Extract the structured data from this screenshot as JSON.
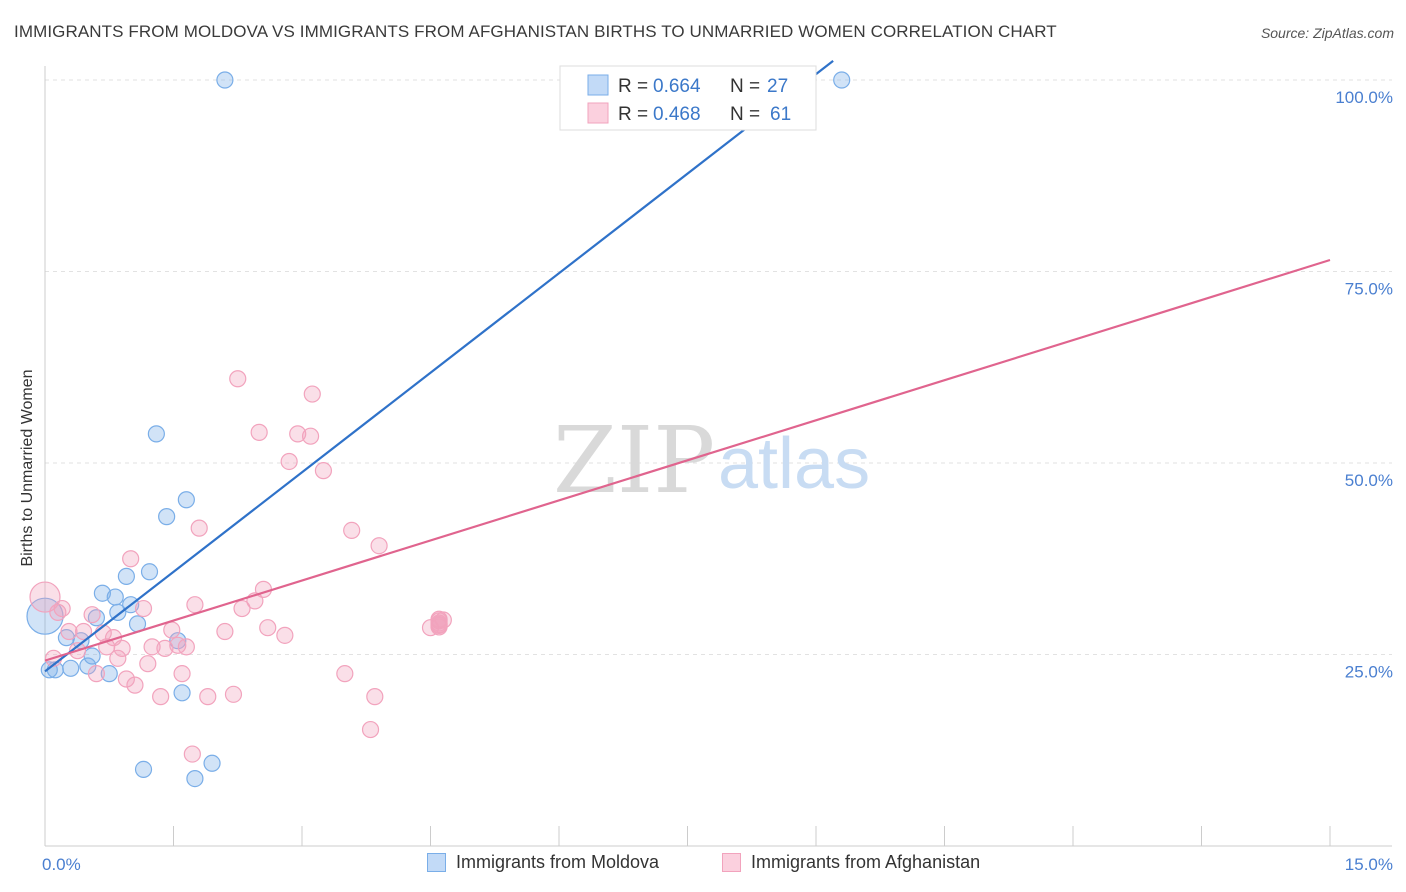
{
  "title": "IMMIGRANTS FROM MOLDOVA VS IMMIGRANTS FROM AFGHANISTAN BIRTHS TO UNMARRIED WOMEN CORRELATION CHART",
  "source": "Source: ZipAtlas.com",
  "watermark": {
    "zip": "ZIP",
    "atlas": "atlas"
  },
  "legend_stats": [
    {
      "r_label": "R =",
      "r_value": "0.664",
      "n_label": "N =",
      "n_value": "27"
    },
    {
      "r_label": "R =",
      "r_value": "0.468",
      "n_label": "N =",
      "n_value": "61"
    }
  ],
  "chart_data": {
    "type": "scatter",
    "title": "IMMIGRANTS FROM MOLDOVA VS IMMIGRANTS FROM AFGHANISTAN BIRTHS TO UNMARRIED WOMEN CORRELATION CHART",
    "xlabel": "",
    "ylabel": "Births to Unmarried Women",
    "xlim": [
      0,
      15
    ],
    "ylim": [
      0,
      100
    ],
    "x_tick_labels": [
      "0.0%",
      "15.0%"
    ],
    "y_ticks": [
      25,
      50,
      75,
      100
    ],
    "y_tick_labels": [
      "25.0%",
      "50.0%",
      "75.0%",
      "100.0%"
    ],
    "grid": true,
    "legend_position": "top-center",
    "series": [
      {
        "name": "Immigrants from Moldova",
        "color": "#7aaee8",
        "line_color": "#2f72c9",
        "r": 0.664,
        "n": 27,
        "trend": [
          [
            0.0,
            22.8
          ],
          [
            9.2,
            102.5
          ]
        ],
        "points": [
          {
            "x": 0.0,
            "y": 30.0,
            "s": 18
          },
          {
            "x": 0.05,
            "y": 23.0
          },
          {
            "x": 0.12,
            "y": 23.0
          },
          {
            "x": 0.25,
            "y": 27.2
          },
          {
            "x": 0.3,
            "y": 23.2
          },
          {
            "x": 0.42,
            "y": 26.8
          },
          {
            "x": 0.5,
            "y": 23.5
          },
          {
            "x": 0.55,
            "y": 24.8
          },
          {
            "x": 0.6,
            "y": 29.8
          },
          {
            "x": 0.67,
            "y": 33.0
          },
          {
            "x": 0.75,
            "y": 22.5
          },
          {
            "x": 0.82,
            "y": 32.5
          },
          {
            "x": 0.85,
            "y": 30.5
          },
          {
            "x": 0.95,
            "y": 35.2
          },
          {
            "x": 1.0,
            "y": 31.5
          },
          {
            "x": 1.08,
            "y": 29.0
          },
          {
            "x": 1.15,
            "y": 10.0
          },
          {
            "x": 1.22,
            "y": 35.8
          },
          {
            "x": 1.3,
            "y": 53.8
          },
          {
            "x": 1.42,
            "y": 43.0
          },
          {
            "x": 1.55,
            "y": 26.8
          },
          {
            "x": 1.6,
            "y": 20.0
          },
          {
            "x": 1.65,
            "y": 45.2
          },
          {
            "x": 1.75,
            "y": 8.8
          },
          {
            "x": 1.95,
            "y": 10.8
          },
          {
            "x": 2.1,
            "y": 100.0
          },
          {
            "x": 9.3,
            "y": 100.0
          }
        ]
      },
      {
        "name": "Immigrants from Afghanistan",
        "color": "#f2a3bd",
        "line_color": "#e0648e",
        "r": 0.468,
        "n": 61,
        "trend": [
          [
            0.0,
            24.2
          ],
          [
            15.0,
            76.5
          ]
        ],
        "points": [
          {
            "x": 0.0,
            "y": 32.5,
            "s": 15
          },
          {
            "x": 0.1,
            "y": 24.5
          },
          {
            "x": 0.15,
            "y": 30.5
          },
          {
            "x": 0.2,
            "y": 31.0
          },
          {
            "x": 0.28,
            "y": 28.0
          },
          {
            "x": 0.38,
            "y": 25.5
          },
          {
            "x": 0.45,
            "y": 28.0
          },
          {
            "x": 0.55,
            "y": 30.2
          },
          {
            "x": 0.6,
            "y": 22.5
          },
          {
            "x": 0.68,
            "y": 27.8
          },
          {
            "x": 0.72,
            "y": 26.0
          },
          {
            "x": 0.8,
            "y": 27.2
          },
          {
            "x": 0.85,
            "y": 24.5
          },
          {
            "x": 0.9,
            "y": 25.8
          },
          {
            "x": 0.95,
            "y": 21.8
          },
          {
            "x": 1.0,
            "y": 37.5
          },
          {
            "x": 1.05,
            "y": 21.0
          },
          {
            "x": 1.15,
            "y": 31.0
          },
          {
            "x": 1.2,
            "y": 23.8
          },
          {
            "x": 1.25,
            "y": 26.0
          },
          {
            "x": 1.35,
            "y": 19.5
          },
          {
            "x": 1.4,
            "y": 25.8
          },
          {
            "x": 1.48,
            "y": 28.2
          },
          {
            "x": 1.55,
            "y": 26.2
          },
          {
            "x": 1.6,
            "y": 22.5
          },
          {
            "x": 1.65,
            "y": 26.0
          },
          {
            "x": 1.72,
            "y": 12.0
          },
          {
            "x": 1.75,
            "y": 31.5
          },
          {
            "x": 1.8,
            "y": 41.5
          },
          {
            "x": 1.9,
            "y": 19.5
          },
          {
            "x": 2.1,
            "y": 28.0
          },
          {
            "x": 2.2,
            "y": 19.8
          },
          {
            "x": 2.25,
            "y": 61.0
          },
          {
            "x": 2.3,
            "y": 31.0
          },
          {
            "x": 2.45,
            "y": 32.0
          },
          {
            "x": 2.5,
            "y": 54.0
          },
          {
            "x": 2.55,
            "y": 33.5
          },
          {
            "x": 2.6,
            "y": 28.5
          },
          {
            "x": 2.8,
            "y": 27.5
          },
          {
            "x": 2.85,
            "y": 50.2
          },
          {
            "x": 2.95,
            "y": 53.8
          },
          {
            "x": 3.1,
            "y": 53.5
          },
          {
            "x": 3.12,
            "y": 59.0
          },
          {
            "x": 3.25,
            "y": 49.0
          },
          {
            "x": 3.5,
            "y": 22.5
          },
          {
            "x": 3.58,
            "y": 41.2
          },
          {
            "x": 3.8,
            "y": 15.2
          },
          {
            "x": 3.85,
            "y": 19.5
          },
          {
            "x": 3.9,
            "y": 39.2
          },
          {
            "x": 4.5,
            "y": 28.5
          },
          {
            "x": 4.65,
            "y": 29.5
          },
          {
            "x": 4.6,
            "y": 28.8
          },
          {
            "x": 4.6,
            "y": 28.6
          },
          {
            "x": 4.6,
            "y": 29.6
          },
          {
            "x": 4.6,
            "y": 29.4
          },
          {
            "x": 4.6,
            "y": 28.9
          },
          {
            "x": 4.6,
            "y": 29.1
          }
        ]
      }
    ]
  }
}
